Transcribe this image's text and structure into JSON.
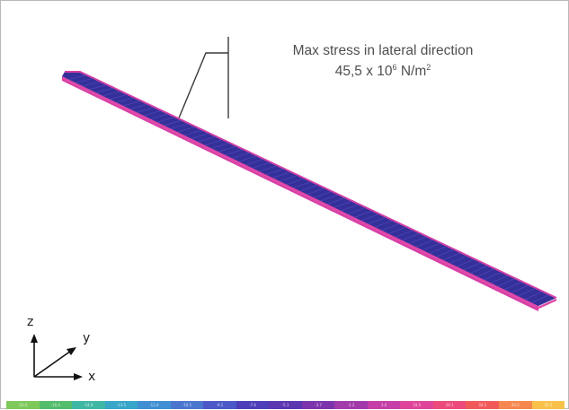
{
  "annotation": {
    "line1": "Max stress in lateral direction",
    "value": "45,5 x 10",
    "exponent": "6",
    "unit": " N/m",
    "unit_exponent": "2"
  },
  "axes": {
    "z": "z",
    "y": "y",
    "x": "x"
  },
  "colors": {
    "beam_body": "#34309a",
    "beam_edge": "#d63fa6",
    "leader_line": "#3a3a3a"
  },
  "legend": {
    "tick_labels": [
      "-16.0",
      "-16.4",
      "-14.9",
      "-13.5",
      "-12.0",
      "-10.5",
      "-9.1",
      "-7.6",
      "-5.1",
      "-3.7",
      "-1.2",
      "3.0",
      "19.5",
      "29.1",
      "34.5",
      "40.0",
      "45.5"
    ],
    "colors": [
      "#7ec95a",
      "#54bd6c",
      "#3fb7a5",
      "#37a6c8",
      "#3f8fd2",
      "#4a76cf",
      "#4a58c8",
      "#4b3eb8",
      "#5c35b1",
      "#7c34ad",
      "#a23aab",
      "#c53fa6",
      "#e0449a",
      "#ec4a7a",
      "#f25a5a",
      "#f6874e",
      "#f8c24a"
    ]
  }
}
